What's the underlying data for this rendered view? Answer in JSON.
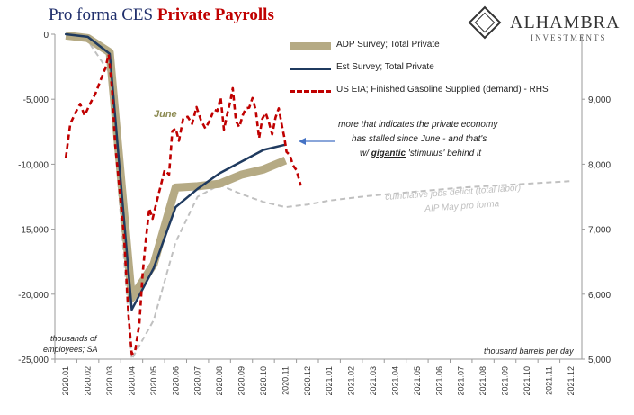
{
  "header": {
    "title_part1": "Pro forma CES ",
    "title_part2": "Private Payrolls"
  },
  "logo": {
    "name": "ALHAMBRA",
    "subtitle": "INVESTMENTS"
  },
  "annotations": {
    "june_label": "June",
    "comment_line1": "more that indicates the private economy",
    "comment_line2": "has stalled since June - and that's",
    "comment_line3_pre": "w/ ",
    "comment_line3_emph": "gigantic",
    "comment_line3_post": " 'stimulus' behind it",
    "deficit_line1": "cumulative jobs deficit (total labor)",
    "deficit_line2": "AIP May pro forma",
    "left_units_line1": "thousands of",
    "left_units_line2": "employees; SA",
    "right_units": "thousand barrels per day"
  },
  "colors": {
    "adp": "#b5aa84",
    "est": "#1f3a5f",
    "eia": "#c00000",
    "deficit": "#c0c0c0",
    "arrow": "#4472c4",
    "june": "#8c8a52"
  },
  "chart_data": {
    "type": "line",
    "x": [
      "2020.01",
      "2020.02",
      "2020.03",
      "2020.04",
      "2020.05",
      "2020.06",
      "2020.07",
      "2020.08",
      "2020.09",
      "2020.10",
      "2020.11",
      "2020.12",
      "2021.01",
      "2021.02",
      "2021.03",
      "2021.04",
      "2021.05",
      "2021.06",
      "2021.07",
      "2021.08",
      "2021.09",
      "2021.10",
      "2021.11",
      "2021.12"
    ],
    "left_axis": {
      "ylim": [
        -25000,
        0
      ],
      "ticks": [
        0,
        -5000,
        -10000,
        -15000,
        -20000,
        -25000
      ],
      "tick_labels": [
        "0",
        "-5,000",
        "-10,000",
        "-15,000",
        "-20,000",
        "-25,000"
      ]
    },
    "right_axis": {
      "ylim": [
        5000,
        10000
      ],
      "ticks": [
        5000,
        6000,
        7000,
        8000,
        9000
      ],
      "tick_labels": [
        "5,000",
        "6,000",
        "7,000",
        "8,000",
        "9,000"
      ]
    },
    "legend_position": "top-center",
    "series": [
      {
        "name": "ADP Survey; Total Private",
        "axis": "left",
        "points": [
          [
            0,
            -100
          ],
          [
            1,
            -300
          ],
          [
            2,
            -1400
          ],
          [
            3,
            -20300
          ],
          [
            4,
            -17700
          ],
          [
            5,
            -11800
          ],
          [
            6,
            -11700
          ],
          [
            7,
            -11500
          ],
          [
            8,
            -10800
          ],
          [
            9,
            -10400
          ],
          [
            10,
            -9700
          ]
        ]
      },
      {
        "name": "Est Survey; Total Private",
        "axis": "left",
        "points": [
          [
            0,
            0
          ],
          [
            1,
            -200
          ],
          [
            2,
            -1500
          ],
          [
            3,
            -21200
          ],
          [
            4,
            -18000
          ],
          [
            5,
            -13300
          ],
          [
            6,
            -11900
          ],
          [
            7,
            -10700
          ],
          [
            8,
            -9800
          ],
          [
            9,
            -8900
          ],
          [
            10,
            -8500
          ]
        ]
      },
      {
        "name": "US EIA; Finished Gasoline Supplied (demand) - RHS",
        "axis": "right",
        "points": [
          [
            0,
            8100
          ],
          [
            0.2,
            8620
          ],
          [
            0.45,
            8800
          ],
          [
            0.65,
            8930
          ],
          [
            0.85,
            8750
          ],
          [
            1.1,
            8930
          ],
          [
            1.35,
            9090
          ],
          [
            1.6,
            9310
          ],
          [
            1.8,
            9480
          ],
          [
            1.95,
            9690
          ],
          [
            2.1,
            9170
          ],
          [
            2.25,
            8290
          ],
          [
            2.45,
            7600
          ],
          [
            2.65,
            6880
          ],
          [
            2.85,
            5690
          ],
          [
            3.0,
            5080
          ],
          [
            3.15,
            5110
          ],
          [
            3.35,
            5550
          ],
          [
            3.5,
            6330
          ],
          [
            3.65,
            6850
          ],
          [
            3.8,
            7320
          ],
          [
            3.95,
            7160
          ],
          [
            4.1,
            7370
          ],
          [
            4.3,
            7640
          ],
          [
            4.5,
            7910
          ],
          [
            4.7,
            7840
          ],
          [
            4.85,
            8510
          ],
          [
            5.0,
            8550
          ],
          [
            5.15,
            8360
          ],
          [
            5.35,
            8710
          ],
          [
            5.55,
            8730
          ],
          [
            5.75,
            8620
          ],
          [
            5.95,
            8880
          ],
          [
            6.15,
            8680
          ],
          [
            6.35,
            8550
          ],
          [
            6.55,
            8670
          ],
          [
            6.75,
            8840
          ],
          [
            6.9,
            8820
          ],
          [
            7.05,
            9030
          ],
          [
            7.2,
            8530
          ],
          [
            7.35,
            8770
          ],
          [
            7.5,
            8980
          ],
          [
            7.6,
            9170
          ],
          [
            7.75,
            8660
          ],
          [
            7.9,
            8570
          ],
          [
            8.05,
            8750
          ],
          [
            8.2,
            8860
          ],
          [
            8.35,
            8870
          ],
          [
            8.5,
            9020
          ],
          [
            8.65,
            8830
          ],
          [
            8.8,
            8400
          ],
          [
            8.95,
            8700
          ],
          [
            9.1,
            8790
          ],
          [
            9.25,
            8640
          ],
          [
            9.4,
            8460
          ],
          [
            9.55,
            8720
          ],
          [
            9.7,
            8860
          ],
          [
            9.85,
            8580
          ],
          [
            9.95,
            8410
          ],
          [
            10.05,
            8190
          ],
          [
            10.2,
            8140
          ],
          [
            10.35,
            7980
          ],
          [
            10.5,
            7910
          ],
          [
            10.7,
            7670
          ]
        ]
      },
      {
        "name": "cumulative jobs deficit (total labor)",
        "axis": "left",
        "points": [
          [
            0,
            0
          ],
          [
            1,
            -500
          ],
          [
            2,
            -3000
          ],
          [
            3,
            -25000
          ],
          [
            4,
            -22000
          ],
          [
            5,
            -16000
          ],
          [
            6,
            -12500
          ],
          [
            7,
            -11600
          ],
          [
            8,
            -12300
          ],
          [
            9,
            -12900
          ],
          [
            10,
            -13300
          ],
          [
            11,
            -13100
          ],
          [
            12,
            -12800
          ],
          [
            13,
            -12600
          ],
          [
            14,
            -12400
          ],
          [
            15,
            -12250
          ],
          [
            16,
            -12100
          ],
          [
            17,
            -11950
          ],
          [
            18,
            -11800
          ],
          [
            19,
            -11700
          ],
          [
            20,
            -11600
          ],
          [
            21,
            -11500
          ],
          [
            22,
            -11400
          ],
          [
            23,
            -11300
          ]
        ]
      }
    ]
  }
}
